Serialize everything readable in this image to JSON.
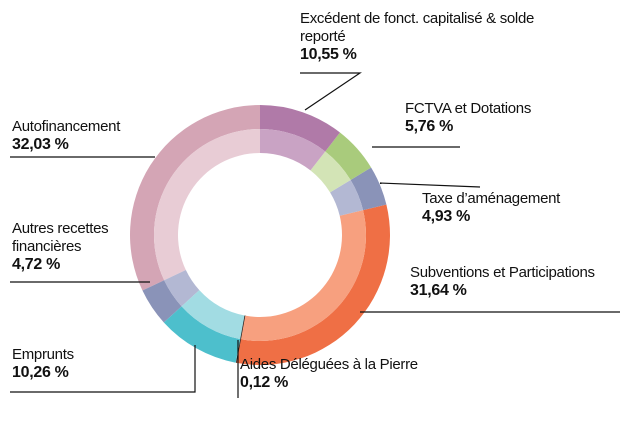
{
  "chart_data": {
    "type": "pie",
    "categories": [
      "Excédent de fonct. capitalisé & solde reporté",
      "FCTVA et Dotations",
      "Taxe d’aménagement",
      "Subventions et Participations",
      "Aides Déléguées à la Pierre",
      "Emprunts",
      "Autres recettes financières",
      "Autofinancement"
    ],
    "values": [
      10.55,
      5.76,
      4.93,
      31.64,
      0.12,
      10.26,
      4.72,
      32.03
    ],
    "value_labels": [
      "10,55 %",
      "5,76 %",
      "4,93 %",
      "31,64 %",
      "0,12 %",
      "10,26 %",
      "4,72 %",
      "32,03 %"
    ],
    "colors": [
      "#b07aa8",
      "#a9cb7c",
      "#8a93b8",
      "#ef6f45",
      "#222222",
      "#4dbfcc",
      "#8a93b8",
      "#d4a5b5"
    ],
    "inner_colors": [
      "#c9a3c4",
      "#d3e4b6",
      "#b3b8d3",
      "#f7a07f",
      "#222222",
      "#a2dce3",
      "#b3b8d3",
      "#e8ccd5"
    ]
  }
}
